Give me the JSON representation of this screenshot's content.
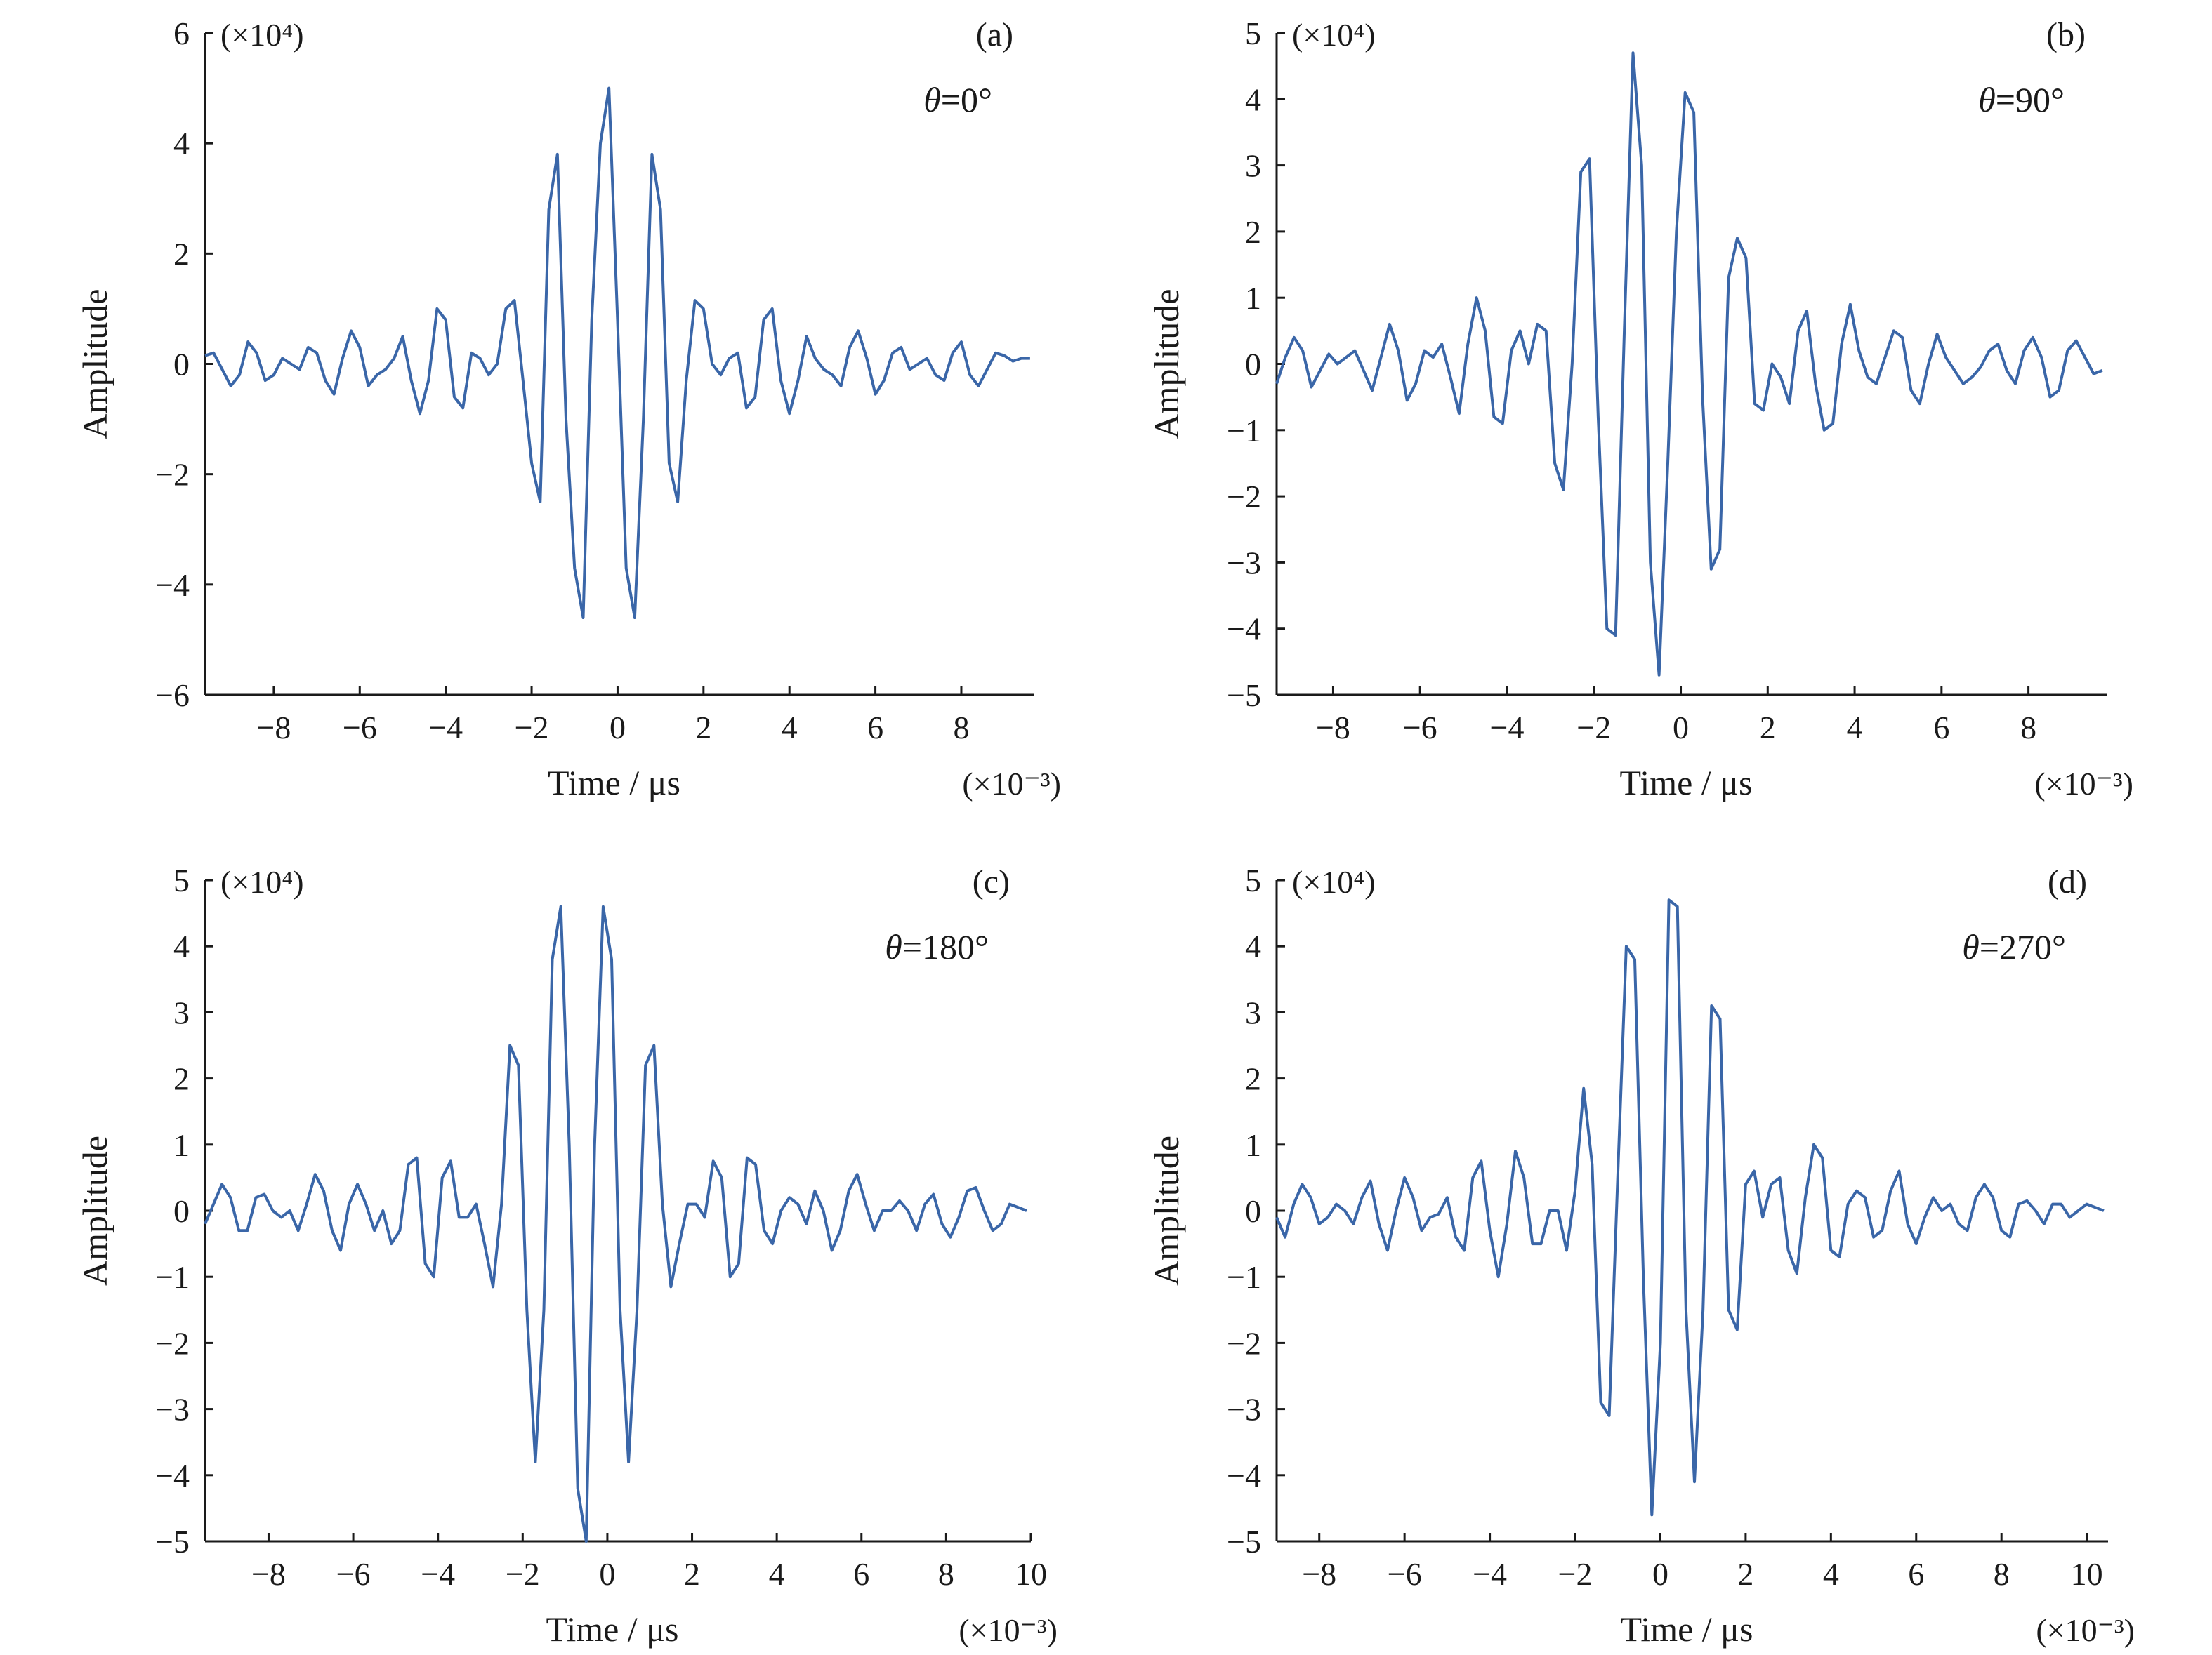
{
  "chart_data": [
    {
      "type": "line",
      "panel_label": "(a)",
      "annotation": "θ=0°",
      "ylabel": "Amplitude",
      "xlabel": "Time / μs",
      "y_scale_note": "(×10⁴)",
      "x_scale_note": "(×10⁻³)",
      "xlim": [
        -9.6,
        9.7
      ],
      "ylim": [
        -6,
        6
      ],
      "xticks": [
        -8,
        -6,
        -4,
        -2,
        0,
        2,
        4,
        6,
        8
      ],
      "yticks": [
        6,
        4,
        2,
        0,
        -2,
        -4,
        -6
      ],
      "series": [
        {
          "color": "#3a66a8",
          "x": [
            -9.6,
            -9.4,
            -9.2,
            -9.0,
            -8.8,
            -8.6,
            -8.4,
            -8.2,
            -8.0,
            -7.8,
            -7.6,
            -7.4,
            -7.2,
            -7.0,
            -6.8,
            -6.6,
            -6.4,
            -6.2,
            -6.0,
            -5.8,
            -5.6,
            -5.4,
            -5.2,
            -5.0,
            -4.8,
            -4.6,
            -4.4,
            -4.2,
            -4.0,
            -3.8,
            -3.6,
            -3.4,
            -3.2,
            -3.0,
            -2.8,
            -2.6,
            -2.4,
            -2.2,
            -2.0,
            -1.8,
            -1.6,
            -1.4,
            -1.2,
            -1.0,
            -0.8,
            -0.6,
            -0.4,
            -0.2,
            0.0,
            0.2,
            0.4,
            0.6,
            0.8,
            1.0,
            1.2,
            1.4,
            1.6,
            1.8,
            2.0,
            2.2,
            2.4,
            2.6,
            2.8,
            3.0,
            3.2,
            3.4,
            3.6,
            3.8,
            4.0,
            4.2,
            4.4,
            4.6,
            4.8,
            5.0,
            5.2,
            5.4,
            5.6,
            5.8,
            6.0,
            6.2,
            6.4,
            6.6,
            6.8,
            7.0,
            7.2,
            7.4,
            7.6,
            7.8,
            8.0,
            8.2,
            8.4,
            8.6,
            8.8,
            9.0,
            9.2,
            9.4,
            9.6
          ],
          "y": [
            0.15,
            0.2,
            -0.1,
            -0.4,
            -0.2,
            0.4,
            0.2,
            -0.3,
            -0.2,
            0.1,
            0.0,
            -0.1,
            0.3,
            0.2,
            -0.3,
            -0.55,
            0.1,
            0.6,
            0.3,
            -0.4,
            -0.2,
            -0.1,
            0.1,
            0.5,
            -0.3,
            -0.9,
            -0.3,
            1.0,
            0.8,
            -0.6,
            -0.8,
            0.2,
            0.1,
            -0.2,
            0.0,
            1.0,
            1.15,
            -0.3,
            -1.8,
            -2.5,
            2.8,
            3.8,
            -1.0,
            -3.7,
            -4.6,
            0.8,
            4.0,
            5.0,
            0.8,
            -3.7,
            -4.6,
            -1.0,
            3.8,
            2.8,
            -1.8,
            -2.5,
            -0.3,
            1.15,
            1.0,
            0.0,
            -0.2,
            0.1,
            0.2,
            -0.8,
            -0.6,
            0.8,
            1.0,
            -0.3,
            -0.9,
            -0.3,
            0.5,
            0.1,
            -0.1,
            -0.2,
            -0.4,
            0.3,
            0.6,
            0.1,
            -0.55,
            -0.3,
            0.2,
            0.3,
            -0.1,
            0.0,
            0.1,
            -0.2,
            -0.3,
            0.2,
            0.4,
            -0.2,
            -0.4,
            -0.1,
            0.2,
            0.15,
            0.05,
            0.1,
            0.1
          ]
        }
      ]
    },
    {
      "type": "line",
      "panel_label": "(b)",
      "annotation": "θ=90°",
      "ylabel": "Amplitude",
      "xlabel": "Time / μs",
      "y_scale_note": "(×10⁴)",
      "x_scale_note": "(×10⁻³)",
      "xlim": [
        -9.3,
        9.8
      ],
      "ylim": [
        -5,
        5
      ],
      "xticks": [
        -8,
        -6,
        -4,
        -2,
        0,
        2,
        4,
        6,
        8
      ],
      "yticks": [
        5,
        4,
        3,
        2,
        1,
        0,
        -1,
        -2,
        -3,
        -4,
        -5
      ],
      "series": [
        {
          "color": "#3a66a8",
          "x": [
            -9.3,
            -9.1,
            -8.9,
            -8.7,
            -8.5,
            -8.3,
            -8.1,
            -7.9,
            -7.7,
            -7.5,
            -7.3,
            -7.1,
            -6.9,
            -6.7,
            -6.5,
            -6.3,
            -6.1,
            -5.9,
            -5.7,
            -5.5,
            -5.3,
            -5.1,
            -4.9,
            -4.7,
            -4.5,
            -4.3,
            -4.1,
            -3.9,
            -3.7,
            -3.5,
            -3.3,
            -3.1,
            -2.9,
            -2.7,
            -2.5,
            -2.3,
            -2.1,
            -1.9,
            -1.7,
            -1.5,
            -1.3,
            -1.1,
            -0.9,
            -0.7,
            -0.5,
            -0.3,
            -0.1,
            0.1,
            0.3,
            0.5,
            0.7,
            0.9,
            1.1,
            1.3,
            1.5,
            1.7,
            1.9,
            2.1,
            2.3,
            2.5,
            2.7,
            2.9,
            3.1,
            3.3,
            3.5,
            3.7,
            3.9,
            4.1,
            4.3,
            4.5,
            4.7,
            4.9,
            5.1,
            5.3,
            5.5,
            5.7,
            5.9,
            6.1,
            6.3,
            6.5,
            6.7,
            6.9,
            7.1,
            7.3,
            7.5,
            7.7,
            7.9,
            8.1,
            8.3,
            8.5,
            8.7,
            8.9,
            9.1,
            9.3,
            9.5,
            9.7
          ],
          "y": [
            -0.3,
            0.1,
            0.4,
            0.2,
            -0.35,
            -0.1,
            0.15,
            0.0,
            0.1,
            0.2,
            -0.1,
            -0.4,
            0.1,
            0.6,
            0.2,
            -0.55,
            -0.3,
            0.2,
            0.1,
            0.3,
            -0.2,
            -0.75,
            0.3,
            1.0,
            0.5,
            -0.8,
            -0.9,
            0.2,
            0.5,
            0.0,
            0.6,
            0.5,
            -1.5,
            -1.9,
            0.0,
            2.9,
            3.1,
            -0.8,
            -4.0,
            -4.1,
            0.5,
            4.7,
            3.0,
            -3.0,
            -4.7,
            -1.5,
            2.0,
            4.1,
            3.8,
            -0.5,
            -3.1,
            -2.8,
            1.3,
            1.9,
            1.6,
            -0.6,
            -0.7,
            0.0,
            -0.2,
            -0.6,
            0.5,
            0.8,
            -0.3,
            -1.0,
            -0.9,
            0.3,
            0.9,
            0.2,
            -0.2,
            -0.3,
            0.1,
            0.5,
            0.4,
            -0.4,
            -0.6,
            0.0,
            0.45,
            0.1,
            -0.1,
            -0.3,
            -0.2,
            -0.05,
            0.2,
            0.3,
            -0.1,
            -0.3,
            0.2,
            0.4,
            0.1,
            -0.5,
            -0.4,
            0.2,
            0.35,
            0.1,
            -0.15,
            -0.1
          ]
        }
      ]
    },
    {
      "type": "line",
      "panel_label": "(c)",
      "annotation": "θ=180°",
      "ylabel": "Amplitude",
      "xlabel": "Time / μs",
      "y_scale_note": "(×10⁴)",
      "x_scale_note": "(×10⁻³)",
      "xlim": [
        -9.5,
        10.0
      ],
      "ylim": [
        -5,
        5
      ],
      "xticks": [
        -8,
        -6,
        -4,
        -2,
        0,
        2,
        4,
        6,
        8,
        10
      ],
      "yticks": [
        5,
        4,
        3,
        2,
        1,
        0,
        -1,
        -2,
        -3,
        -4,
        -5
      ],
      "series": [
        {
          "color": "#3a66a8",
          "x": [
            -9.5,
            -9.3,
            -9.1,
            -8.9,
            -8.7,
            -8.5,
            -8.3,
            -8.1,
            -7.9,
            -7.7,
            -7.5,
            -7.3,
            -7.1,
            -6.9,
            -6.7,
            -6.5,
            -6.3,
            -6.1,
            -5.9,
            -5.7,
            -5.5,
            -5.3,
            -5.1,
            -4.9,
            -4.7,
            -4.5,
            -4.3,
            -4.1,
            -3.9,
            -3.7,
            -3.5,
            -3.3,
            -3.1,
            -2.9,
            -2.7,
            -2.5,
            -2.3,
            -2.1,
            -1.9,
            -1.7,
            -1.5,
            -1.3,
            -1.1,
            -0.9,
            -0.7,
            -0.5,
            -0.3,
            -0.1,
            0.1,
            0.3,
            0.5,
            0.7,
            0.9,
            1.1,
            1.3,
            1.5,
            1.7,
            1.9,
            2.1,
            2.3,
            2.5,
            2.7,
            2.9,
            3.1,
            3.3,
            3.5,
            3.7,
            3.9,
            4.1,
            4.3,
            4.5,
            4.7,
            4.9,
            5.1,
            5.3,
            5.5,
            5.7,
            5.9,
            6.1,
            6.3,
            6.5,
            6.7,
            6.9,
            7.1,
            7.3,
            7.5,
            7.7,
            7.9,
            8.1,
            8.3,
            8.5,
            8.7,
            8.9,
            9.1,
            9.3,
            9.5,
            9.7,
            9.9
          ],
          "y": [
            -0.2,
            0.1,
            0.4,
            0.2,
            -0.3,
            -0.3,
            0.2,
            0.25,
            0.0,
            -0.1,
            0.0,
            -0.3,
            0.1,
            0.55,
            0.3,
            -0.3,
            -0.6,
            0.1,
            0.4,
            0.1,
            -0.3,
            0.0,
            -0.5,
            -0.3,
            0.7,
            0.8,
            -0.8,
            -1.0,
            0.5,
            0.75,
            -0.1,
            -0.1,
            0.1,
            -0.5,
            -1.15,
            0.1,
            2.5,
            2.2,
            -1.5,
            -3.8,
            -1.5,
            3.8,
            4.6,
            1.0,
            -4.2,
            -5.0,
            1.0,
            4.6,
            3.8,
            -1.5,
            -3.8,
            -1.5,
            2.2,
            2.5,
            0.1,
            -1.15,
            -0.5,
            0.1,
            0.1,
            -0.1,
            0.75,
            0.5,
            -1.0,
            -0.8,
            0.8,
            0.7,
            -0.3,
            -0.5,
            0.0,
            0.2,
            0.1,
            -0.2,
            0.3,
            0.0,
            -0.6,
            -0.3,
            0.3,
            0.55,
            0.1,
            -0.3,
            0.0,
            0.0,
            0.15,
            0.0,
            -0.3,
            0.1,
            0.25,
            -0.2,
            -0.4,
            -0.1,
            0.3,
            0.35,
            0.0,
            -0.3,
            -0.2,
            0.1,
            0.05,
            0.0
          ]
        }
      ]
    },
    {
      "type": "line",
      "panel_label": "(d)",
      "annotation": "θ=270°",
      "ylabel": "Amplitude",
      "xlabel": "Time / μs",
      "y_scale_note": "(×10⁴)",
      "x_scale_note": "(×10⁻³)",
      "xlim": [
        -9.0,
        10.5
      ],
      "ylim": [
        -5,
        5
      ],
      "xticks": [
        -8,
        -6,
        -4,
        -2,
        0,
        2,
        4,
        6,
        8,
        10
      ],
      "yticks": [
        5,
        4,
        3,
        2,
        1,
        0,
        -1,
        -2,
        -3,
        -4,
        -5
      ],
      "series": [
        {
          "color": "#3a66a8",
          "x": [
            -9.0,
            -8.8,
            -8.6,
            -8.4,
            -8.2,
            -8.0,
            -7.8,
            -7.6,
            -7.4,
            -7.2,
            -7.0,
            -6.8,
            -6.6,
            -6.4,
            -6.2,
            -6.0,
            -5.8,
            -5.6,
            -5.4,
            -5.2,
            -5.0,
            -4.8,
            -4.6,
            -4.4,
            -4.2,
            -4.0,
            -3.8,
            -3.6,
            -3.4,
            -3.2,
            -3.0,
            -2.8,
            -2.6,
            -2.4,
            -2.2,
            -2.0,
            -1.8,
            -1.6,
            -1.4,
            -1.2,
            -1.0,
            -0.8,
            -0.6,
            -0.4,
            -0.2,
            0.0,
            0.2,
            0.4,
            0.6,
            0.8,
            1.0,
            1.2,
            1.4,
            1.6,
            1.8,
            2.0,
            2.2,
            2.4,
            2.6,
            2.8,
            3.0,
            3.2,
            3.4,
            3.6,
            3.8,
            4.0,
            4.2,
            4.4,
            4.6,
            4.8,
            5.0,
            5.2,
            5.4,
            5.6,
            5.8,
            6.0,
            6.2,
            6.4,
            6.6,
            6.8,
            7.0,
            7.2,
            7.4,
            7.6,
            7.8,
            8.0,
            8.2,
            8.4,
            8.6,
            8.8,
            9.0,
            9.2,
            9.4,
            9.6,
            9.8,
            10.0,
            10.2,
            10.4
          ],
          "y": [
            -0.1,
            -0.4,
            0.1,
            0.4,
            0.2,
            -0.2,
            -0.1,
            0.1,
            0.0,
            -0.2,
            0.2,
            0.45,
            -0.2,
            -0.6,
            0.0,
            0.5,
            0.2,
            -0.3,
            -0.1,
            -0.05,
            0.2,
            -0.4,
            -0.6,
            0.5,
            0.75,
            -0.3,
            -1.0,
            -0.2,
            0.9,
            0.5,
            -0.5,
            -0.5,
            0.0,
            0.0,
            -0.6,
            0.3,
            1.85,
            0.7,
            -2.9,
            -3.1,
            0.5,
            4.0,
            3.8,
            -1.0,
            -4.6,
            -2.0,
            4.7,
            4.6,
            -1.5,
            -4.1,
            -1.5,
            3.1,
            2.9,
            -1.5,
            -1.8,
            0.4,
            0.6,
            -0.1,
            0.4,
            0.5,
            -0.6,
            -0.95,
            0.2,
            1.0,
            0.8,
            -0.6,
            -0.7,
            0.1,
            0.3,
            0.2,
            -0.4,
            -0.3,
            0.3,
            0.6,
            -0.2,
            -0.5,
            -0.1,
            0.2,
            0.0,
            0.1,
            -0.2,
            -0.3,
            0.2,
            0.4,
            0.2,
            -0.3,
            -0.4,
            0.1,
            0.15,
            0.0,
            -0.2,
            0.1,
            0.1,
            -0.1,
            0.0,
            0.1,
            0.05,
            0.0
          ]
        }
      ]
    }
  ]
}
